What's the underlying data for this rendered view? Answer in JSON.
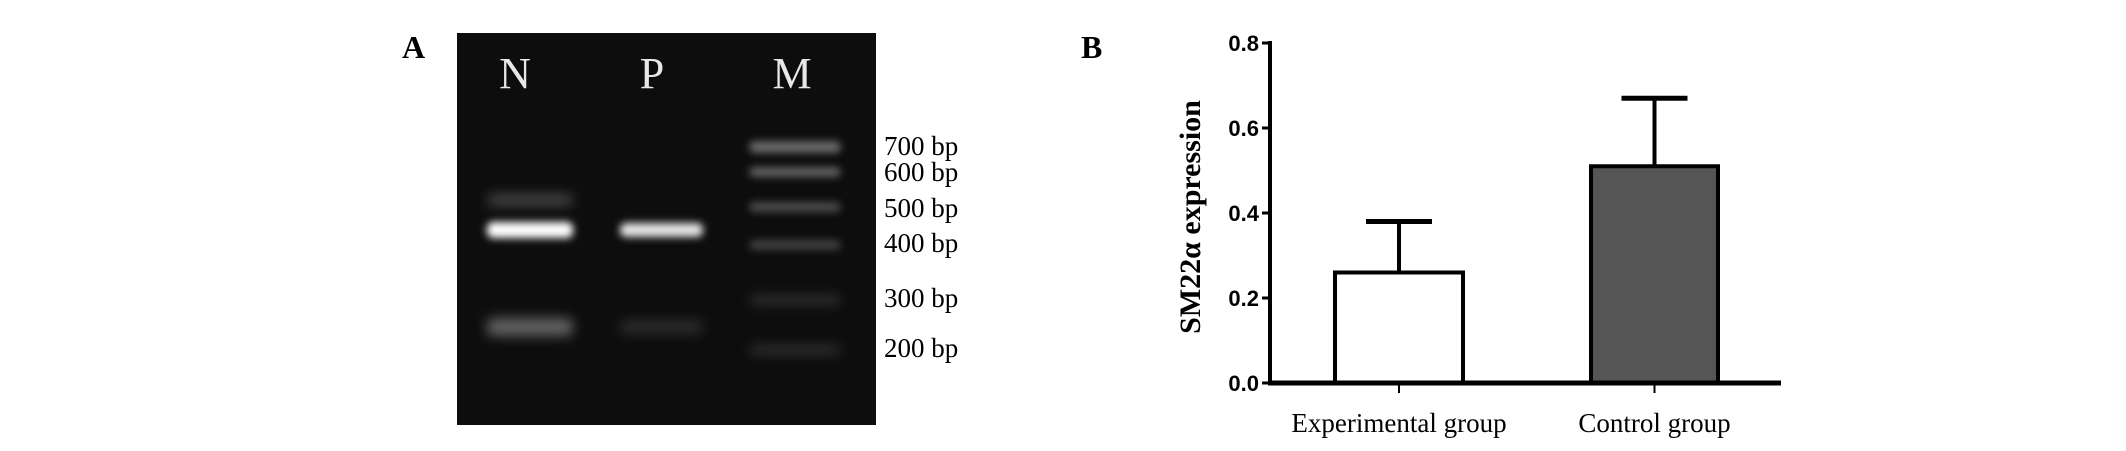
{
  "panels": {
    "a_label": "A",
    "b_label": "B"
  },
  "gel": {
    "lanes": [
      "N",
      "P",
      "M"
    ],
    "markers": [
      "700 bp",
      "600 bp",
      "500 bp",
      "400 bp",
      "300 bp",
      "200 bp"
    ],
    "background_color": "#0d0d0d"
  },
  "chart_data": {
    "type": "bar",
    "categories": [
      "Experimental group",
      "Control group"
    ],
    "values": [
      0.26,
      0.51
    ],
    "error_upper": [
      0.38,
      0.67
    ],
    "ylabel": "SM22α expression",
    "xlabel": "",
    "ylim": [
      0,
      0.8
    ],
    "yticks": [
      "0.0",
      "0.2",
      "0.4",
      "0.6",
      "0.8"
    ],
    "bar_colors": [
      "#ffffff",
      "#555555"
    ],
    "grid": false
  }
}
